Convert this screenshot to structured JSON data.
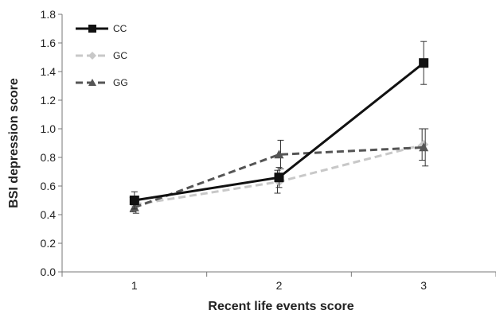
{
  "chart_data": {
    "type": "line",
    "xlabel": "Recent life events score",
    "ylabel": "BSI depression score",
    "categories": [
      "1",
      "2",
      "3"
    ],
    "ylim": [
      0,
      1.8
    ],
    "ytick_step": 0.2,
    "yticks": [
      "0.0",
      "0.2",
      "0.4",
      "0.6",
      "0.8",
      "1.0",
      "1.2",
      "1.4",
      "1.6",
      "1.8"
    ],
    "grid": false,
    "legend_position": "top-left",
    "series": [
      {
        "name": "CC",
        "values": [
          0.5,
          0.66,
          1.46
        ],
        "err": [
          0.06,
          0.07,
          0.15
        ],
        "color": "#111111",
        "dash": "solid",
        "marker": "square"
      },
      {
        "name": "GC",
        "values": [
          0.47,
          0.63,
          0.89
        ],
        "err": [
          0.05,
          0.08,
          0.11
        ],
        "color": "#c8c8c8",
        "dash": "dashed",
        "marker": "diamond"
      },
      {
        "name": "GG",
        "values": [
          0.45,
          0.82,
          0.87
        ],
        "err": [
          0.04,
          0.1,
          0.13
        ],
        "color": "#555555",
        "dash": "dashed",
        "marker": "triangle"
      }
    ]
  }
}
